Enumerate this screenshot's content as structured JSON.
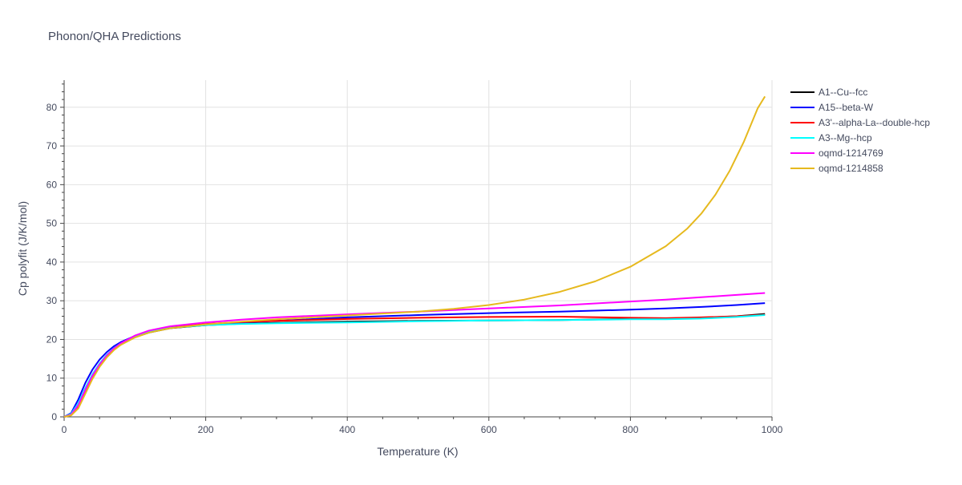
{
  "chart_data": {
    "type": "line",
    "title": "Phonon/QHA Predictions",
    "xlabel": "Temperature (K)",
    "ylabel": "Cp polyfit (J/K/mol)",
    "xlim": [
      0,
      1000
    ],
    "ylim": [
      0,
      87
    ],
    "xticks": [
      0,
      200,
      400,
      600,
      800,
      1000
    ],
    "yticks": [
      0,
      10,
      20,
      30,
      40,
      50,
      60,
      70,
      80
    ],
    "grid": true,
    "legend_position": "right",
    "series": [
      {
        "name": "A1--Cu--fcc",
        "color": "#000000",
        "x": [
          0,
          10,
          20,
          30,
          40,
          50,
          60,
          70,
          80,
          100,
          120,
          150,
          200,
          250,
          300,
          400,
          500,
          600,
          700,
          800,
          850,
          900,
          950,
          990
        ],
        "y": [
          0,
          0.5,
          2.5,
          6.5,
          10.2,
          13.2,
          15.6,
          17.4,
          18.8,
          20.6,
          21.8,
          22.9,
          23.7,
          24.1,
          24.3,
          24.6,
          24.8,
          24.9,
          25.0,
          25.3,
          25.4,
          25.6,
          26.0,
          26.6
        ]
      },
      {
        "name": "A15--beta-W",
        "color": "#0000ff",
        "x": [
          0,
          10,
          20,
          30,
          40,
          50,
          60,
          70,
          80,
          100,
          120,
          150,
          200,
          250,
          300,
          400,
          500,
          600,
          700,
          800,
          850,
          900,
          950,
          990
        ],
        "y": [
          0,
          1.0,
          4.5,
          8.8,
          12.2,
          14.8,
          16.7,
          18.2,
          19.3,
          20.9,
          22.0,
          23.0,
          23.9,
          24.4,
          24.8,
          25.7,
          26.3,
          26.8,
          27.2,
          27.7,
          28.0,
          28.4,
          28.9,
          29.4
        ]
      },
      {
        "name": "A3'--alpha-La--double-hcp",
        "color": "#ff0000",
        "x": [
          0,
          10,
          20,
          30,
          40,
          50,
          60,
          70,
          80,
          100,
          120,
          150,
          200,
          250,
          300,
          400,
          500,
          600,
          700,
          800,
          850,
          900,
          950,
          990
        ],
        "y": [
          0,
          0.5,
          2.8,
          6.8,
          10.5,
          13.4,
          15.7,
          17.5,
          18.9,
          20.8,
          22.0,
          23.1,
          24.0,
          24.5,
          24.8,
          25.3,
          25.6,
          25.8,
          25.9,
          25.6,
          25.5,
          25.7,
          26.0,
          26.4
        ]
      },
      {
        "name": "A3--Mg--hcp",
        "color": "#00ffff",
        "x": [
          0,
          10,
          20,
          30,
          40,
          50,
          60,
          70,
          80,
          100,
          120,
          150,
          200,
          250,
          300,
          400,
          500,
          600,
          700,
          800,
          850,
          900,
          950,
          990
        ],
        "y": [
          0,
          0.8,
          3.5,
          7.5,
          11.0,
          13.8,
          16.0,
          17.7,
          19.0,
          20.8,
          22.0,
          23.0,
          23.7,
          24.0,
          24.2,
          24.4,
          24.7,
          24.9,
          25.0,
          25.2,
          25.2,
          25.4,
          25.8,
          26.3
        ]
      },
      {
        "name": "oqmd-1214769",
        "color": "#ff00ff",
        "x": [
          0,
          10,
          20,
          30,
          40,
          50,
          60,
          70,
          80,
          100,
          120,
          150,
          200,
          250,
          300,
          400,
          500,
          600,
          700,
          800,
          850,
          900,
          950,
          990
        ],
        "y": [
          0,
          0.6,
          3.0,
          7.0,
          10.6,
          13.5,
          15.8,
          17.6,
          19.0,
          21.0,
          22.3,
          23.4,
          24.4,
          25.1,
          25.7,
          26.5,
          27.2,
          28.0,
          28.8,
          29.8,
          30.3,
          30.9,
          31.5,
          32.0
        ]
      },
      {
        "name": "oqmd-1214858",
        "color": "#e6b91e",
        "x": [
          0,
          10,
          20,
          30,
          40,
          50,
          60,
          70,
          80,
          100,
          120,
          150,
          200,
          250,
          300,
          400,
          500,
          550,
          600,
          650,
          700,
          750,
          800,
          850,
          880,
          900,
          920,
          940,
          960,
          980,
          990
        ],
        "y": [
          0,
          0.4,
          2.2,
          6.0,
          9.8,
          12.9,
          15.3,
          17.2,
          18.6,
          20.5,
          21.8,
          22.9,
          23.9,
          24.6,
          25.2,
          26.2,
          27.2,
          27.9,
          28.9,
          30.3,
          32.3,
          35.0,
          38.8,
          44.1,
          48.6,
          52.5,
          57.4,
          63.5,
          71.0,
          79.8,
          82.8
        ]
      }
    ]
  }
}
